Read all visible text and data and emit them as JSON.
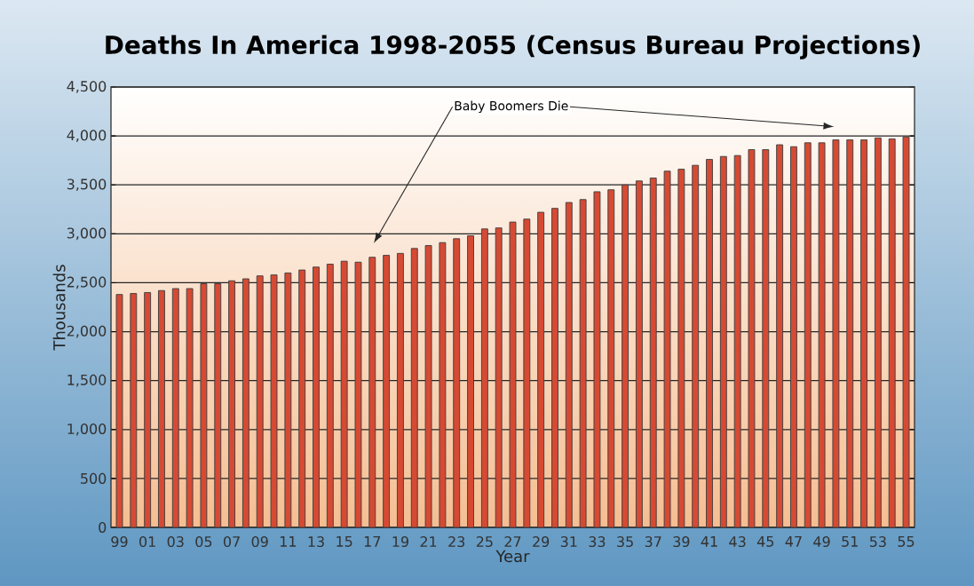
{
  "chart_data": {
    "type": "bar",
    "title": "Deaths In America 1998-2055 (Census Bureau Projections)",
    "xlabel": "Year",
    "ylabel": "Thousands",
    "categories": [
      "99",
      null,
      "01",
      null,
      "03",
      null,
      "05",
      null,
      "07",
      null,
      "09",
      null,
      "11",
      null,
      "13",
      null,
      "15",
      null,
      "17",
      null,
      "19",
      null,
      "21",
      null,
      "23",
      null,
      "25",
      null,
      "27",
      null,
      "29",
      null,
      "31",
      null,
      "33",
      null,
      "35",
      null,
      "37",
      null,
      "39",
      null,
      "41",
      null,
      "43",
      null,
      "45",
      null,
      "47",
      null,
      "49",
      null,
      "51",
      null,
      "53",
      null,
      "55"
    ],
    "values": [
      2380,
      2390,
      2400,
      2420,
      2440,
      2440,
      2490,
      2490,
      2520,
      2540,
      2570,
      2580,
      2600,
      2630,
      2660,
      2690,
      2720,
      2710,
      2760,
      2780,
      2800,
      2850,
      2880,
      2910,
      2950,
      2980,
      3050,
      3060,
      3120,
      3150,
      3220,
      3260,
      3320,
      3350,
      3430,
      3450,
      3500,
      3540,
      3570,
      3640,
      3660,
      3700,
      3760,
      3790,
      3800,
      3860,
      3860,
      3910,
      3890,
      3930,
      3930,
      3960,
      3960,
      3960,
      3980,
      3970,
      3990
    ],
    "color": "#d64a33",
    "ylim": [
      0,
      4500
    ],
    "yticks": [
      0,
      500,
      {
        "value": 1000,
        "label": "1,000"
      },
      {
        "value": 1500,
        "label": "1,500"
      },
      {
        "value": 2000,
        "label": "2,000"
      },
      {
        "value": 2500,
        "label": "2,500"
      },
      {
        "value": 3000,
        "label": "3,000"
      },
      {
        "value": 3500,
        "label": "3,500"
      },
      {
        "value": 4000,
        "label": "4,000"
      },
      {
        "value": 4500,
        "label": "4,500"
      }
    ],
    "grid": "y",
    "annotations": [
      "Baby Boomers Die"
    ]
  }
}
